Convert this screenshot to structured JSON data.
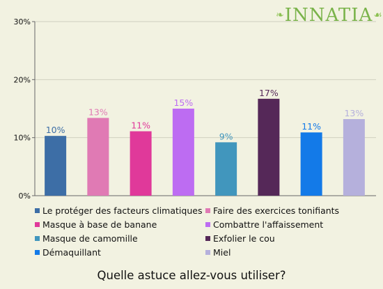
{
  "brand": {
    "name": "INNATIA",
    "left_ornament": "❧",
    "right_ornament": "☙"
  },
  "question": "Quelle astuce allez-vous utiliser?",
  "chart_data": {
    "type": "bar",
    "title": "",
    "xlabel": "",
    "ylabel": "",
    "ylim": [
      0,
      30
    ],
    "yticks": [
      0,
      10,
      20,
      30
    ],
    "ytick_labels": [
      "0%",
      "10%",
      "20%",
      "30%"
    ],
    "grid": true,
    "legend_position": "bottom",
    "categories": [
      "Le protéger des facteurs climatiques",
      "Faire des exercices tonifiants",
      "Masque à base de banane",
      "Combattre l'affaissement",
      "Masque de camomille",
      "Exfolier le cou",
      "Démaquillant",
      "Miel"
    ],
    "values": [
      10.3,
      13.4,
      11.1,
      15.0,
      9.2,
      16.7,
      10.9,
      13.2
    ],
    "labels": [
      "10%",
      "13%",
      "11%",
      "15%",
      "9%",
      "17%",
      "11%",
      "13%"
    ],
    "colors": [
      "#3d6ea6",
      "#e07ab4",
      "#e0399a",
      "#bd6cf2",
      "#4196bd",
      "#552858",
      "#137ae8",
      "#b5b0dc"
    ]
  }
}
